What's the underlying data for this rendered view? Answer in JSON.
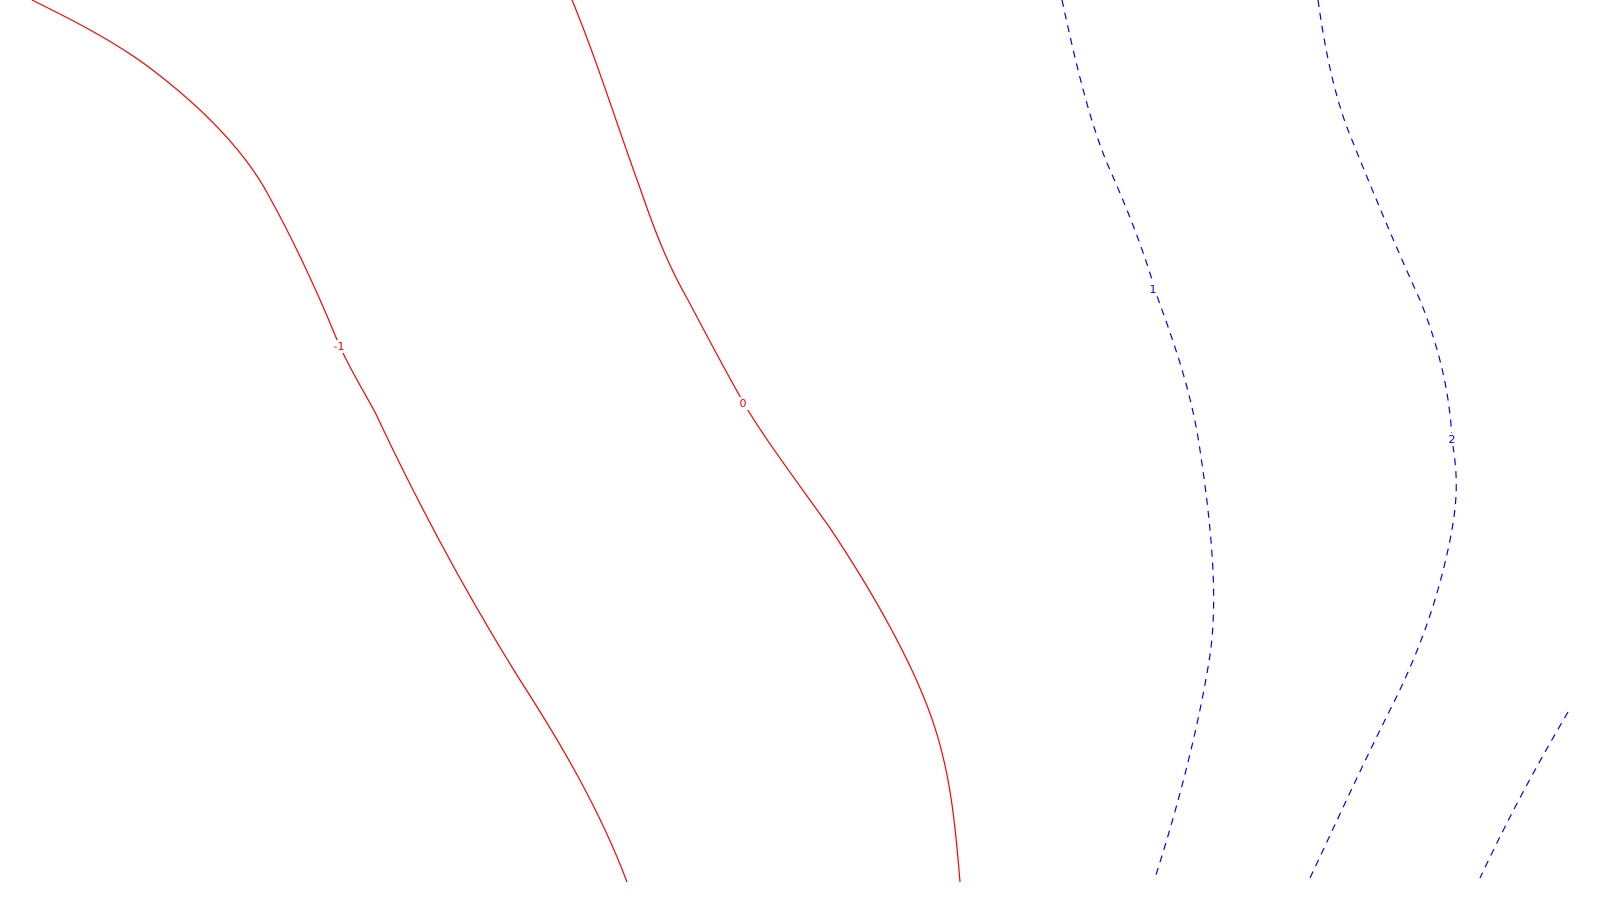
{
  "chart_data": {
    "type": "contour",
    "title": "",
    "xlabel": "",
    "ylabel": "",
    "axes_visible": false,
    "grid": false,
    "colors": {
      "background": "#ffffff",
      "non_positive_contours": "#ff0000",
      "positive_contours": "#0000ff"
    },
    "levels": [
      {
        "value": -1,
        "label": "-1",
        "color": "#ff0000",
        "dashed": false
      },
      {
        "value": 0,
        "label": "0",
        "color": "#ff0000",
        "dashed": false
      },
      {
        "value": 1,
        "label": "1",
        "color": "#0000ff",
        "dashed": true
      },
      {
        "value": 2,
        "label": "2",
        "color": "#0000ff",
        "dashed": true
      },
      {
        "value": 3,
        "label": "",
        "color": "#0000ff",
        "dashed": true
      }
    ]
  }
}
